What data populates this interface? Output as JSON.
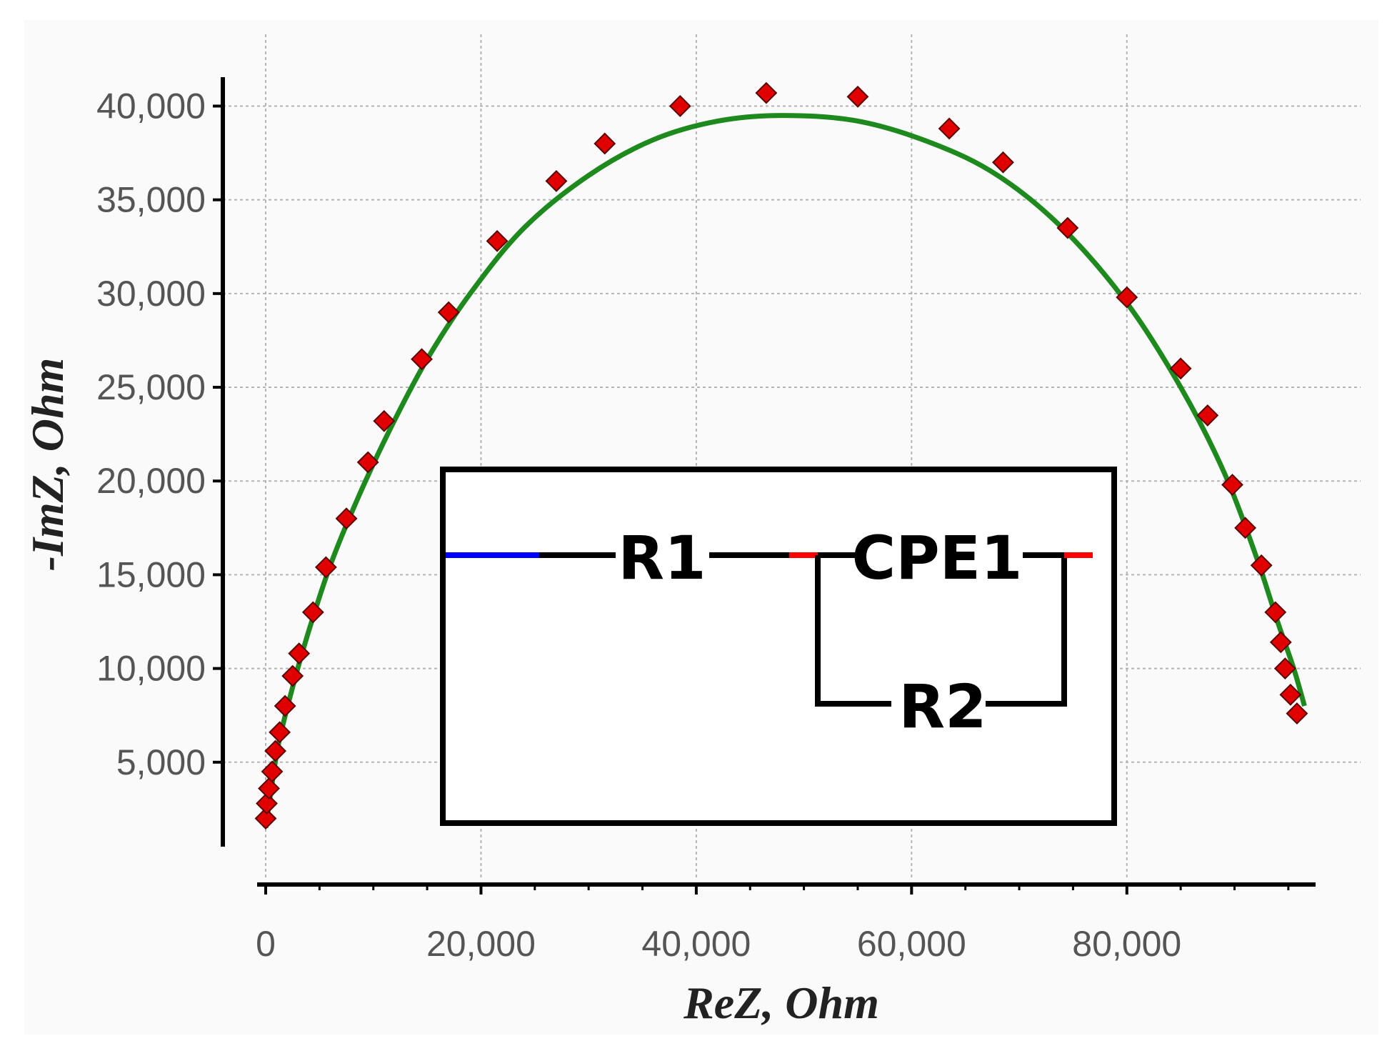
{
  "chart_data": {
    "type": "scatter",
    "xlabel": "ReZ, Ohm",
    "ylabel": "-ImZ, Ohm",
    "xlim": [
      0,
      97000
    ],
    "ylim": [
      0,
      42000
    ],
    "x_ticks": [
      0,
      20000,
      40000,
      60000,
      80000
    ],
    "x_tick_labels": [
      "0",
      "20,000",
      "40,000",
      "60,000",
      "80,000"
    ],
    "y_ticks": [
      5000,
      10000,
      15000,
      20000,
      25000,
      30000,
      35000,
      40000
    ],
    "y_tick_labels": [
      "5,000",
      "10,000",
      "15,000",
      "20,000",
      "25,000",
      "30,000",
      "35,000",
      "40,000"
    ],
    "grid": true,
    "series": [
      {
        "kind": "measured",
        "marker": "diamond",
        "color": "#e00000",
        "points": [
          [
            0,
            2000
          ],
          [
            100,
            2800
          ],
          [
            300,
            3600
          ],
          [
            600,
            4500
          ],
          [
            900,
            5600
          ],
          [
            1300,
            6600
          ],
          [
            1800,
            8000
          ],
          [
            2500,
            9600
          ],
          [
            3100,
            10800
          ],
          [
            4400,
            13000
          ],
          [
            5600,
            15400
          ],
          [
            7500,
            18000
          ],
          [
            9500,
            21000
          ],
          [
            11000,
            23200
          ],
          [
            14500,
            26500
          ],
          [
            17000,
            29000
          ],
          [
            21500,
            32800
          ],
          [
            27000,
            36000
          ],
          [
            31500,
            38000
          ],
          [
            38500,
            40000
          ],
          [
            46500,
            40700
          ],
          [
            55000,
            40500
          ],
          [
            63500,
            38800
          ],
          [
            68500,
            37000
          ],
          [
            74500,
            33500
          ],
          [
            80000,
            29800
          ],
          [
            85000,
            26000
          ],
          [
            87500,
            23500
          ],
          [
            89800,
            19800
          ],
          [
            91000,
            17500
          ],
          [
            92500,
            15500
          ],
          [
            93800,
            13000
          ],
          [
            94300,
            11400
          ],
          [
            94700,
            10000
          ],
          [
            95200,
            8600
          ],
          [
            95800,
            7600
          ]
        ]
      },
      {
        "kind": "fitted",
        "color": "#1e8a1e",
        "points": [
          [
            0,
            1500
          ],
          [
            500,
            3500
          ],
          [
            1200,
            6000
          ],
          [
            2500,
            9000
          ],
          [
            4000,
            12000
          ],
          [
            6000,
            15500
          ],
          [
            8500,
            19000
          ],
          [
            11500,
            22700
          ],
          [
            15000,
            26500
          ],
          [
            19000,
            30000
          ],
          [
            24000,
            33500
          ],
          [
            30000,
            36300
          ],
          [
            36000,
            38200
          ],
          [
            42000,
            39200
          ],
          [
            48000,
            39500
          ],
          [
            55000,
            39200
          ],
          [
            62000,
            38000
          ],
          [
            68000,
            36300
          ],
          [
            74000,
            33500
          ],
          [
            80000,
            29500
          ],
          [
            85000,
            25000
          ],
          [
            89000,
            20500
          ],
          [
            92000,
            16000
          ],
          [
            94000,
            12500
          ],
          [
            95500,
            10000
          ],
          [
            96500,
            8000
          ]
        ]
      }
    ]
  },
  "circuit": {
    "r1_label": "R1",
    "cpe1_label": "CPE1",
    "r2_label": "R2",
    "wire_color": "#000000",
    "input_lead_color": "#0000ff",
    "node_color": "#ff0000"
  }
}
